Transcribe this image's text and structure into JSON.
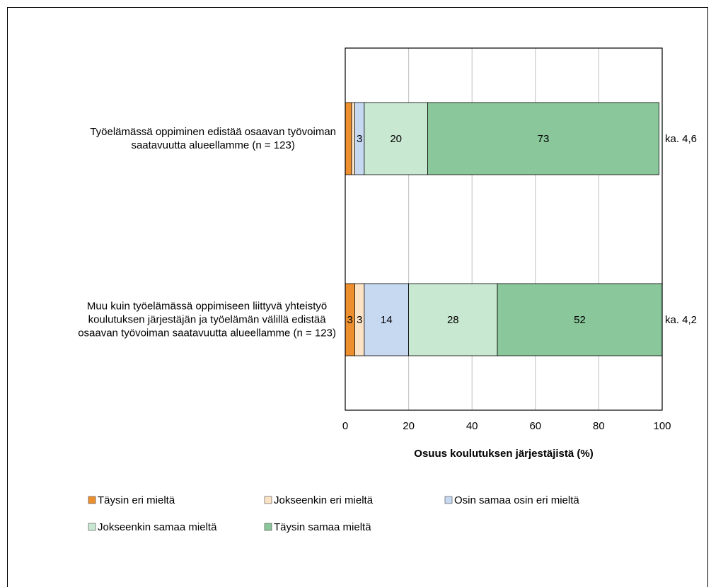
{
  "chart_data": {
    "type": "bar",
    "orientation": "horizontal",
    "stacked": true,
    "categories": [
      "Työelämässä oppiminen edistää osaavan työvoiman\nsaatavuutta alueellamme (n = 123)",
      "Muu kuin työelämässä oppimiseen liittyvä yhteistyö\nkoulutuksen järjestäjän ja työelämän välillä edistää\nosaavan työvoiman saatavuutta alueellamme (n = 123)"
    ],
    "series": [
      {
        "name": "Täysin eri mieltä",
        "color": "#ee8f2f",
        "values": [
          2,
          3
        ],
        "value_labels": [
          null,
          "3"
        ]
      },
      {
        "name": "Jokseenkin eri mieltä",
        "color": "#fde3c6",
        "values": [
          1,
          3
        ],
        "value_labels": [
          null,
          "3"
        ]
      },
      {
        "name": "Osin samaa osin eri mieltä",
        "color": "#c6d9f1",
        "values": [
          3,
          14
        ],
        "value_labels": [
          "3",
          "14"
        ]
      },
      {
        "name": "Jokseenkin samaa mieltä",
        "color": "#c9e8d1",
        "values": [
          20,
          28
        ],
        "value_labels": [
          "20",
          "28"
        ]
      },
      {
        "name": "Täysin samaa mieltä",
        "color": "#8ac79b",
        "values": [
          73,
          52
        ],
        "value_labels": [
          "73",
          "52"
        ]
      }
    ],
    "annotations": [
      "ka. 4,6",
      "ka. 4,2"
    ],
    "xlabel": "Osuus koulutuksen järjestäjistä (%)",
    "xlim": [
      0,
      100
    ],
    "xticks": [
      0,
      20,
      40,
      60,
      80,
      100
    ],
    "grid": true,
    "legend": "bottom"
  }
}
